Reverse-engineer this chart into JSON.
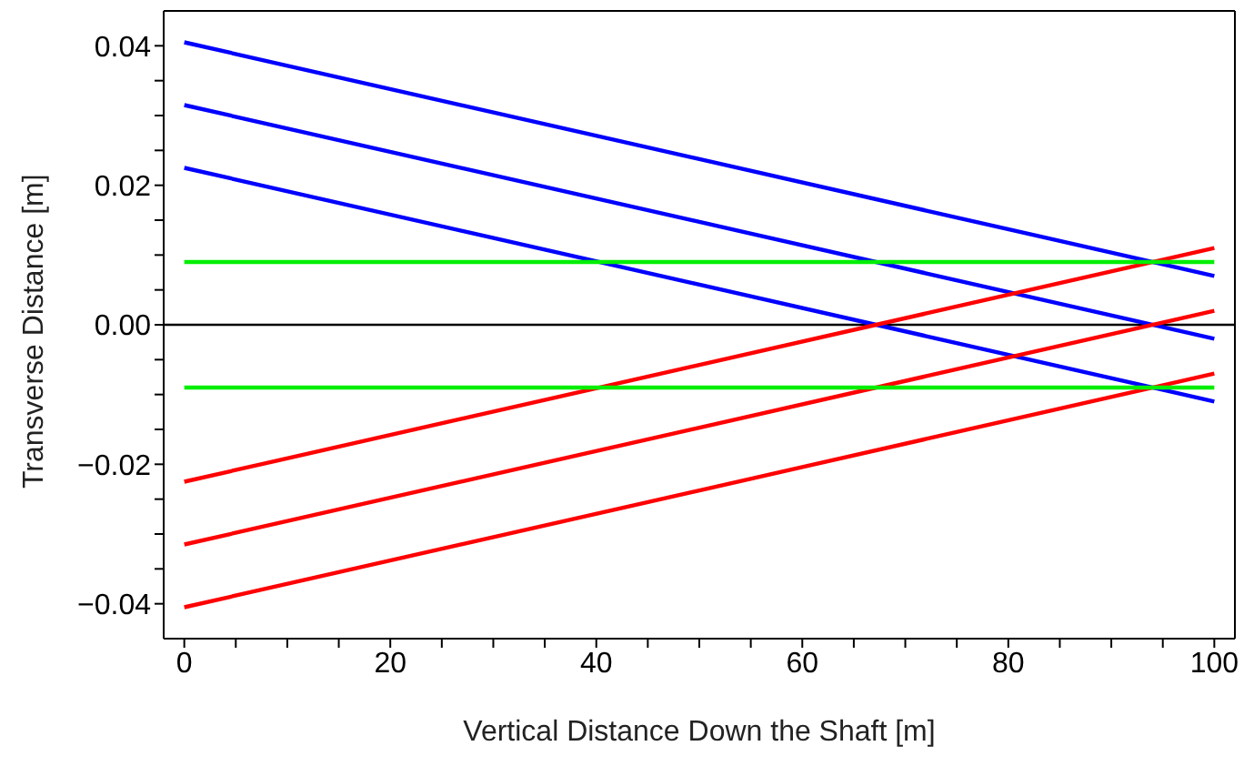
{
  "chart_data": {
    "type": "line",
    "xlabel": "Vertical Distance Down the Shaft [m]",
    "ylabel": "Transverse Distance [m]",
    "xlim": [
      -2,
      102
    ],
    "ylim": [
      -0.045,
      0.045
    ],
    "xticks": [
      0,
      {
        "value": 5,
        "label": null
      },
      {
        "value": 10,
        "label": null
      },
      {
        "value": 15,
        "label": null
      },
      20,
      {
        "value": 25,
        "label": null
      },
      {
        "value": 30,
        "label": null
      },
      {
        "value": 35,
        "label": null
      },
      40,
      {
        "value": 45,
        "label": null
      },
      {
        "value": 50,
        "label": null
      },
      {
        "value": 55,
        "label": null
      },
      60,
      {
        "value": 65,
        "label": null
      },
      {
        "value": 70,
        "label": null
      },
      {
        "value": 75,
        "label": null
      },
      80,
      {
        "value": 85,
        "label": null
      },
      {
        "value": 90,
        "label": null
      },
      {
        "value": 95,
        "label": null
      },
      100
    ],
    "yticks": [
      {
        "value": -0.04,
        "label": "−0.04"
      },
      {
        "value": -0.035,
        "label": null
      },
      {
        "value": -0.03,
        "label": null
      },
      {
        "value": -0.025,
        "label": null
      },
      {
        "value": -0.02,
        "label": "−0.02"
      },
      {
        "value": -0.015,
        "label": null
      },
      {
        "value": -0.01,
        "label": null
      },
      {
        "value": -0.005,
        "label": null
      },
      {
        "value": 0,
        "label": "0.00"
      },
      {
        "value": 0.005,
        "label": null
      },
      {
        "value": 0.01,
        "label": null
      },
      {
        "value": 0.015,
        "label": null
      },
      0.02,
      {
        "value": 0.025,
        "label": null
      },
      {
        "value": 0.03,
        "label": null
      },
      {
        "value": 0.035,
        "label": null
      },
      0.04
    ],
    "legend": false,
    "marker": "none",
    "line_style": "solid",
    "ref_lines": [
      {
        "axis": "y",
        "value": 0,
        "color": "#000000"
      }
    ],
    "x": [
      0,
      100
    ],
    "series": [
      {
        "color": "#0000ff",
        "values": [
          0.0405,
          0.007
        ]
      },
      {
        "color": "#0000ff",
        "values": [
          0.0315,
          -0.002
        ]
      },
      {
        "color": "#0000ff",
        "values": [
          0.0225,
          -0.011
        ]
      },
      {
        "color": "#ff0000",
        "values": [
          -0.0225,
          0.011
        ]
      },
      {
        "color": "#ff0000",
        "values": [
          -0.0315,
          0.002
        ]
      },
      {
        "color": "#ff0000",
        "values": [
          -0.0405,
          -0.007
        ]
      },
      {
        "color": "#00ee00",
        "values": [
          0.009,
          0.009
        ]
      },
      {
        "color": "#00ee00",
        "values": [
          -0.009,
          -0.009
        ]
      }
    ]
  }
}
